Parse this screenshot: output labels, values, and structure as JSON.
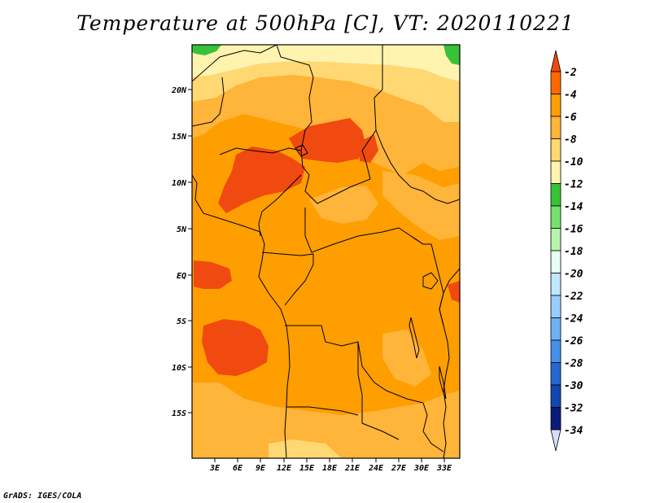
{
  "title": "Temperature at 500hPa [C], VT: 2020110221",
  "credit": "GrADS: IGES/COLA",
  "map": {
    "lat_labels": [
      "20N",
      "15N",
      "10N",
      "5N",
      "EQ",
      "5S",
      "10S",
      "15S"
    ],
    "lon_labels": [
      "3E",
      "6E",
      "9E",
      "12E",
      "15E",
      "18E",
      "21E",
      "24E",
      "27E",
      "30E",
      "33E"
    ],
    "lat_range": [
      -20,
      24.5
    ],
    "lon_range": [
      0,
      35
    ]
  },
  "colorbar": {
    "labels": [
      "-2",
      "-4",
      "-6",
      "-8",
      "-10",
      "-12",
      "-14",
      "-16",
      "-18",
      "-20",
      "-22",
      "-24",
      "-26",
      "-28",
      "-30",
      "-32",
      "-34"
    ],
    "colors": [
      "#f04a10",
      "#ff6a00",
      "#ff9e00",
      "#ffb43a",
      "#ffd873",
      "#fff3b0",
      "#38c238",
      "#78e070",
      "#b6f4ac",
      "#e8fff4",
      "#bfe7ff",
      "#98ceff",
      "#6fb1f5",
      "#4690e8",
      "#2668d2",
      "#1147b0",
      "#0a1c78",
      "#d8dcf8"
    ]
  }
}
